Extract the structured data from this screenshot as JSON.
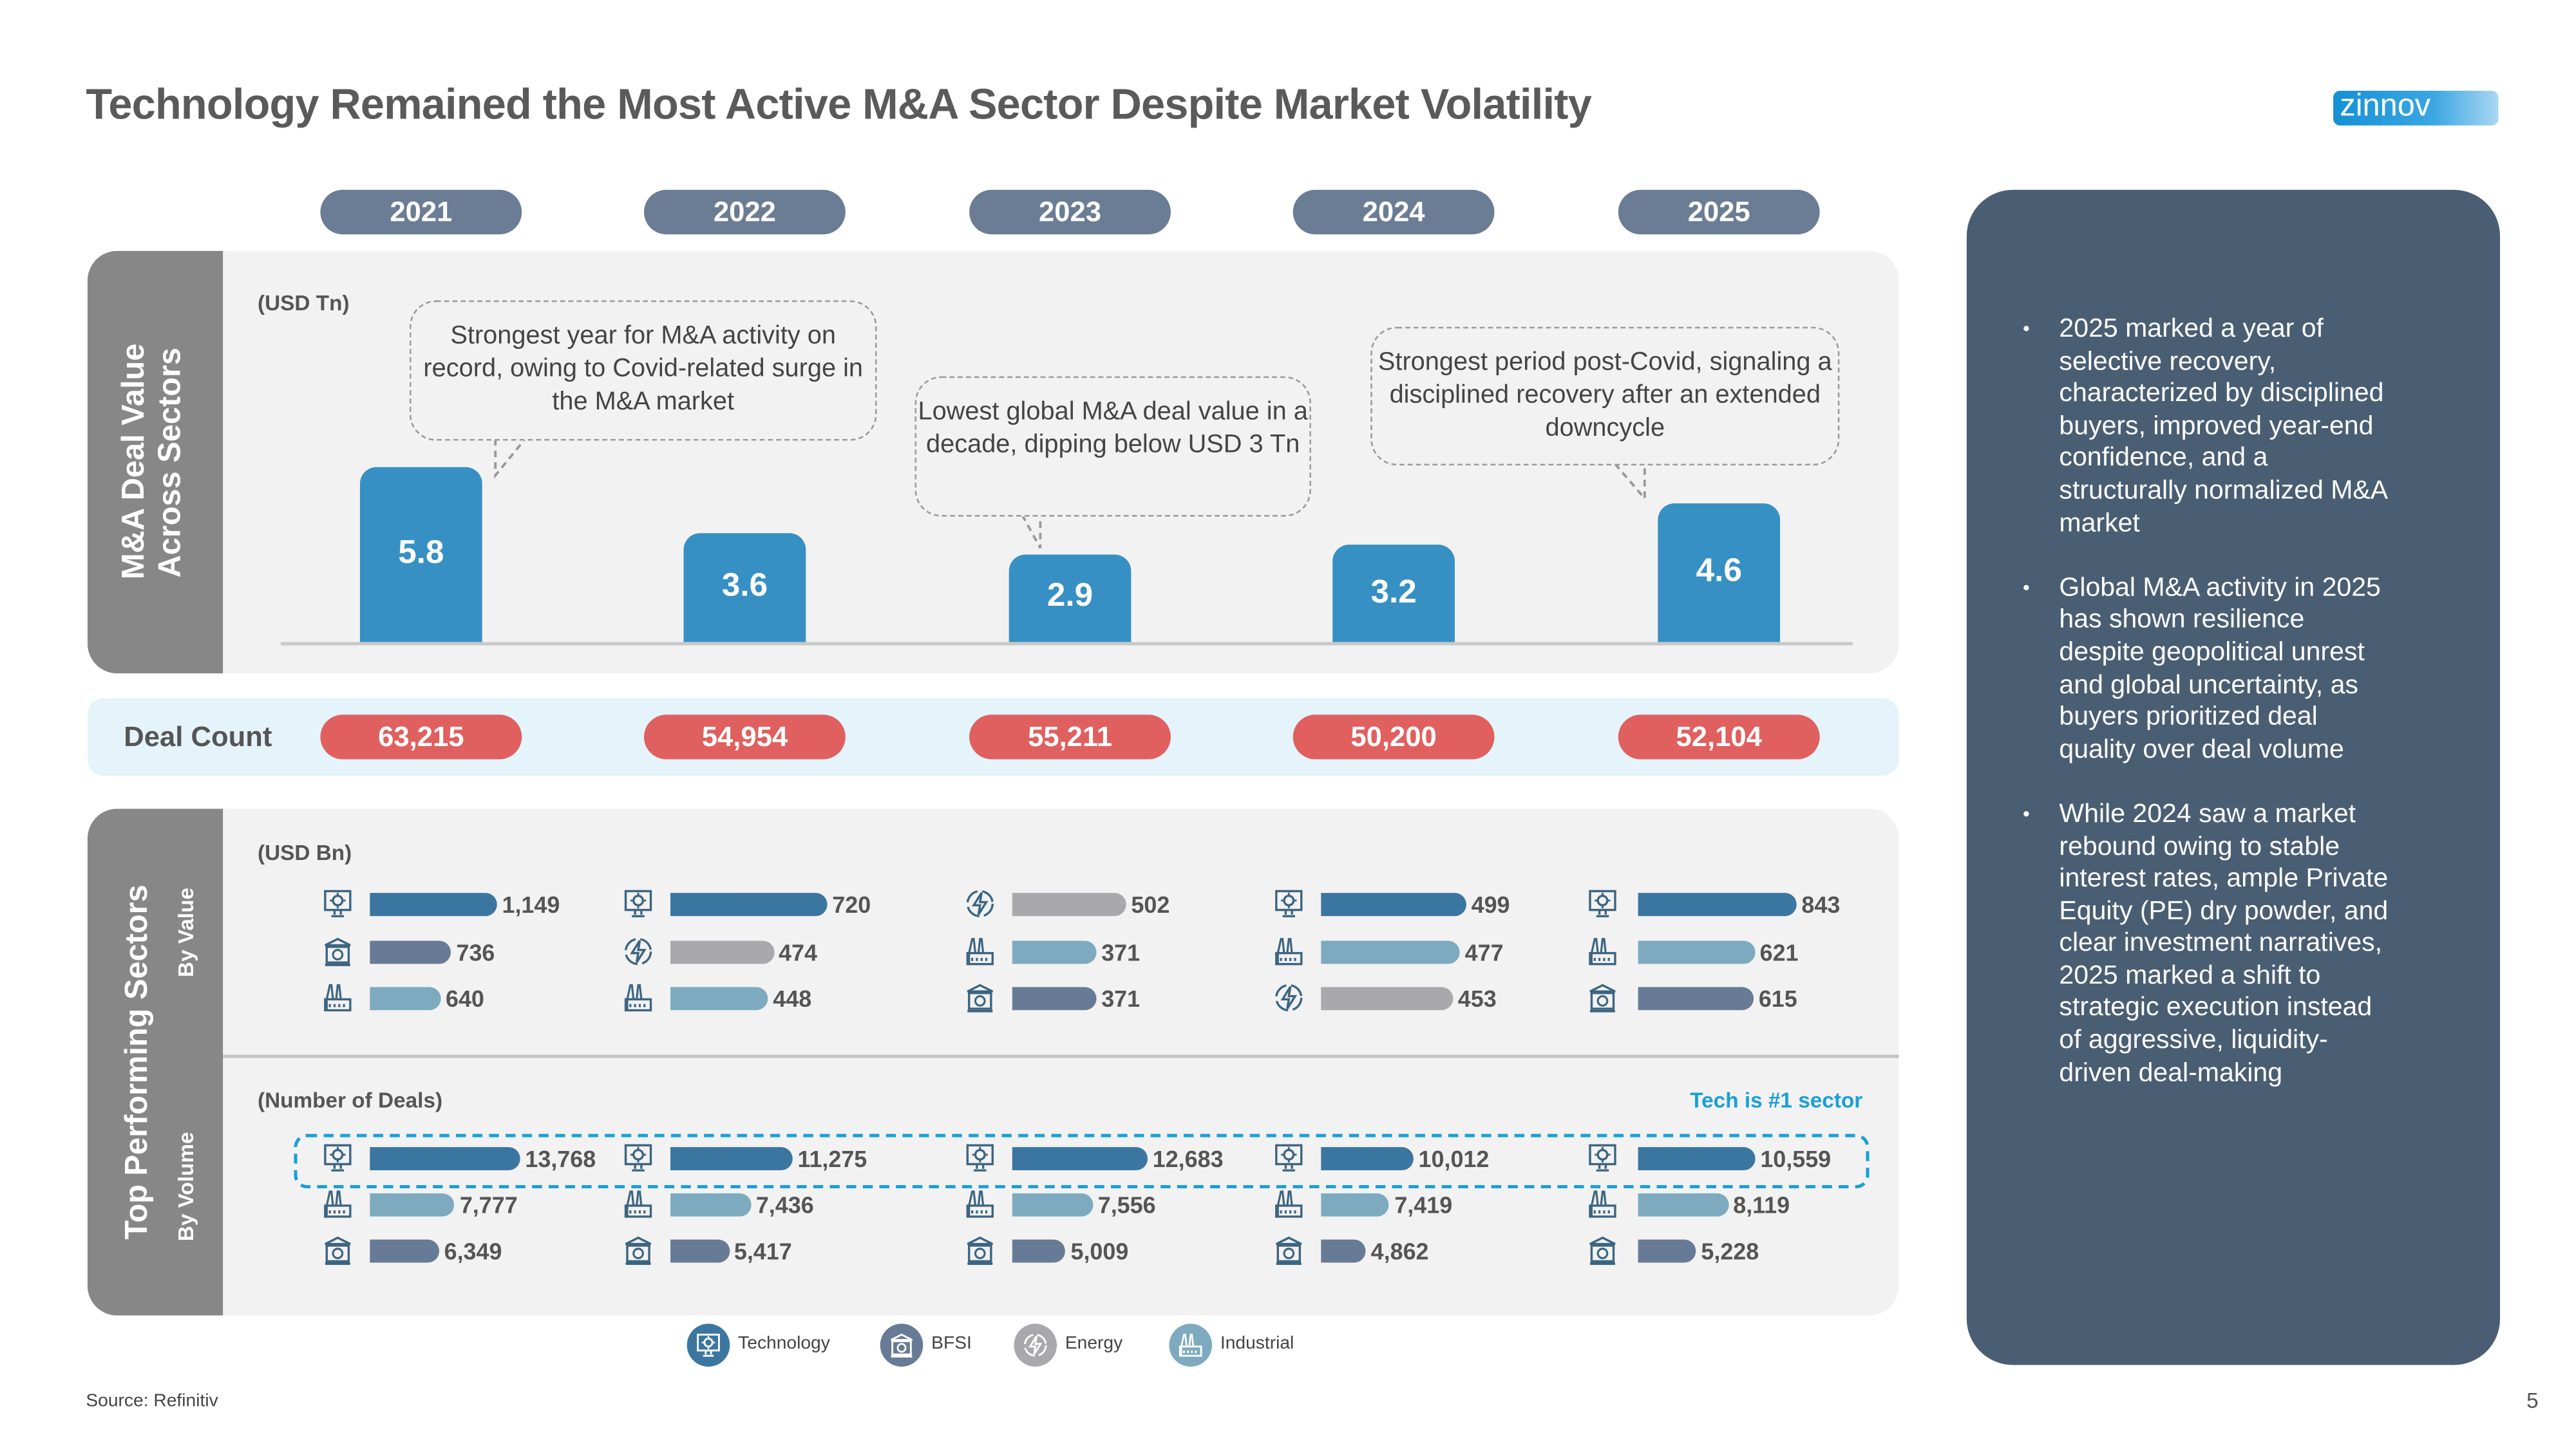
{
  "title": "Technology Remained the Most Active M&A Sector Despite Market Volatility",
  "logo_text": "zinnov",
  "years": [
    "2021",
    "2022",
    "2023",
    "2024",
    "2025"
  ],
  "colors": {
    "year_pill": "#6b7d94",
    "deal_value_bar": "#3790c3",
    "deal_count_pill": "#e0605f",
    "technology": "#3b76a0",
    "bfsi": "#687b96",
    "energy": "#a9a9ad",
    "industrial": "#7eaabf",
    "highlight": "#1a9fd8",
    "insight_panel": "#4a5e73"
  },
  "deal_value": {
    "section_label_line1": "M&A Deal Value",
    "section_label_line2": "Across Sectors",
    "unit": "(USD Tn)",
    "callouts": [
      "Strongest year for M&A activity on record, owing to Covid-related surge in the M&A market",
      "Lowest global M&A deal value in a decade, dipping below USD 3 Tn",
      "Strongest period post-Covid, signaling a disciplined recovery after an extended downcycle"
    ]
  },
  "deal_count": {
    "label": "Deal Count",
    "values": [
      "63,215",
      "54,954",
      "55,211",
      "50,200",
      "52,104"
    ]
  },
  "sectors": {
    "section_label": "Top Performing Sectors",
    "by_value_label": "By Value",
    "by_volume_label": "By Volume",
    "value_unit": "(USD Bn)",
    "volume_unit": "(Number of Deals)",
    "highlight_label": "Tech is #1 sector"
  },
  "legend": [
    {
      "sector": "technology",
      "label": "Technology",
      "icon": "monitor-gear-icon"
    },
    {
      "sector": "bfsi",
      "label": "BFSI",
      "icon": "bank-icon"
    },
    {
      "sector": "energy",
      "label": "Energy",
      "icon": "lightning-bolt-icon"
    },
    {
      "sector": "industrial",
      "label": "Industrial",
      "icon": "factory-icon"
    }
  ],
  "chart_data": [
    {
      "type": "bar",
      "title": "M&A Deal Value Across Sectors",
      "ylabel": "(USD Tn)",
      "categories": [
        "2021",
        "2022",
        "2023",
        "2024",
        "2025"
      ],
      "values": [
        5.8,
        3.6,
        2.9,
        3.2,
        4.6
      ],
      "grid": false
    },
    {
      "type": "bar",
      "orientation": "horizontal",
      "title": "Top Performing Sectors - By Value",
      "unit": "(USD Bn)",
      "categories": [
        "2021",
        "2022",
        "2023",
        "2024",
        "2025"
      ],
      "groups": [
        [
          {
            "sector": "technology",
            "value": 1149,
            "label": "1,149"
          },
          {
            "sector": "bfsi",
            "value": 736,
            "label": "736"
          },
          {
            "sector": "industrial",
            "value": 640,
            "label": "640"
          }
        ],
        [
          {
            "sector": "technology",
            "value": 720,
            "label": "720"
          },
          {
            "sector": "energy",
            "value": 474,
            "label": "474"
          },
          {
            "sector": "industrial",
            "value": 448,
            "label": "448"
          }
        ],
        [
          {
            "sector": "energy",
            "value": 502,
            "label": "502"
          },
          {
            "sector": "industrial",
            "value": 371,
            "label": "371"
          },
          {
            "sector": "bfsi",
            "value": 371,
            "label": "371"
          }
        ],
        [
          {
            "sector": "technology",
            "value": 499,
            "label": "499"
          },
          {
            "sector": "industrial",
            "value": 477,
            "label": "477"
          },
          {
            "sector": "energy",
            "value": 453,
            "label": "453"
          }
        ],
        [
          {
            "sector": "technology",
            "value": 843,
            "label": "843"
          },
          {
            "sector": "industrial",
            "value": 621,
            "label": "621"
          },
          {
            "sector": "bfsi",
            "value": 615,
            "label": "615"
          }
        ]
      ]
    },
    {
      "type": "bar",
      "orientation": "horizontal",
      "title": "Top Performing Sectors - By Volume",
      "unit": "(Number of Deals)",
      "categories": [
        "2021",
        "2022",
        "2023",
        "2024",
        "2025"
      ],
      "groups": [
        [
          {
            "sector": "technology",
            "value": 13768,
            "label": "13,768"
          },
          {
            "sector": "industrial",
            "value": 7777,
            "label": "7,777"
          },
          {
            "sector": "bfsi",
            "value": 6349,
            "label": "6,349"
          }
        ],
        [
          {
            "sector": "technology",
            "value": 11275,
            "label": "11,275"
          },
          {
            "sector": "industrial",
            "value": 7436,
            "label": "7,436"
          },
          {
            "sector": "bfsi",
            "value": 5417,
            "label": "5,417"
          }
        ],
        [
          {
            "sector": "technology",
            "value": 12683,
            "label": "12,683"
          },
          {
            "sector": "industrial",
            "value": 7556,
            "label": "7,556"
          },
          {
            "sector": "bfsi",
            "value": 5009,
            "label": "5,009"
          }
        ],
        [
          {
            "sector": "technology",
            "value": 10012,
            "label": "10,012"
          },
          {
            "sector": "industrial",
            "value": 7419,
            "label": "7,419"
          },
          {
            "sector": "bfsi",
            "value": 4862,
            "label": "4,862"
          }
        ],
        [
          {
            "sector": "technology",
            "value": 10559,
            "label": "10,559"
          },
          {
            "sector": "industrial",
            "value": 8119,
            "label": "8,119"
          },
          {
            "sector": "bfsi",
            "value": 5228,
            "label": "5,228"
          }
        ]
      ]
    }
  ],
  "insights": [
    "2025 marked a year of selective recovery, characterized by disciplined buyers, improved year-end confidence, and a structurally normalized M&A market",
    "Global M&A activity in 2025 has shown resilience despite geopolitical unrest and global uncertainty, as buyers prioritized deal quality over deal volume",
    "While 2024 saw a market rebound owing to stable interest rates, ample Private Equity (PE) dry powder, and clear investment narratives, 2025 marked a shift to strategic execution instead of aggressive, liquidity-driven deal-making"
  ],
  "source": "Source: Refinitiv",
  "page_number": "5"
}
